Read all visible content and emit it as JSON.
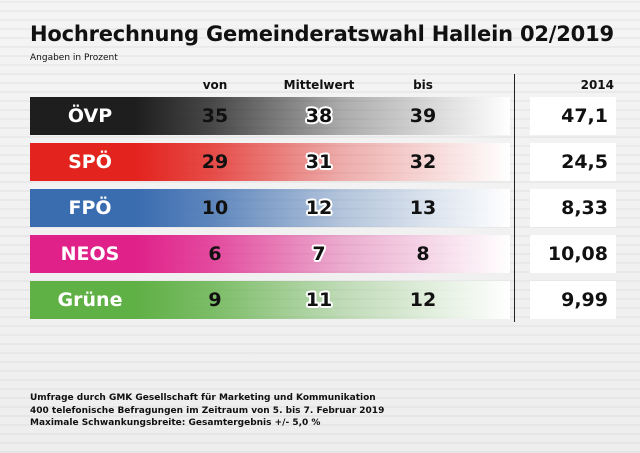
{
  "title": "Hochrechnung Gemeinderatswahl Hallein 02/2019",
  "subtitle": "Angaben in Prozent",
  "chart_data": {
    "type": "table",
    "columns": [
      "von",
      "Mittelwert",
      "bis",
      "2014"
    ],
    "rows": [
      {
        "party": "ÖVP",
        "von": "35",
        "mittelwert": "38",
        "bis": "39",
        "prev": "47,1",
        "color": "#1e1e1e",
        "text_color": "#ffffff"
      },
      {
        "party": "SPÖ",
        "von": "29",
        "mittelwert": "31",
        "bis": "32",
        "prev": "24,5",
        "color": "#e3231e",
        "text_color": "#ffffff"
      },
      {
        "party": "FPÖ",
        "von": "10",
        "mittelwert": "12",
        "bis": "13",
        "prev": "8,33",
        "color": "#3a6cb0",
        "text_color": "#ffffff"
      },
      {
        "party": "NEOS",
        "von": "6",
        "mittelwert": "7",
        "bis": "8",
        "prev": "10,08",
        "color": "#e0218a",
        "text_color": "#ffffff"
      },
      {
        "party": "Grüne",
        "von": "9",
        "mittelwert": "11",
        "bis": "12",
        "prev": "9,99",
        "color": "#5fb045",
        "text_color": "#ffffff"
      }
    ]
  },
  "footer": {
    "line1": "Umfrage durch GMK Gesellschaft für Marketing und Kommunikation",
    "line2": "400 telefonische Befragungen im Zeitraum von 5. bis 7. Februar 2019",
    "line3": "Maximale Schwankungsbreite: Gesamtergebnis +/- 5,0 %"
  }
}
